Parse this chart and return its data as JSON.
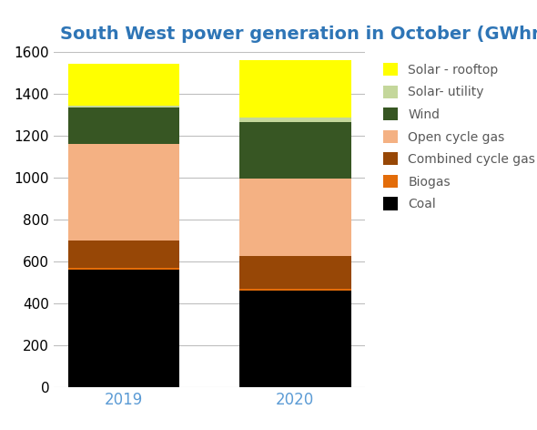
{
  "title": "South West power generation in October (GWhr)",
  "title_color": "#2E75B6",
  "categories": [
    "2019",
    "2020"
  ],
  "series": [
    {
      "label": "Coal",
      "values": [
        560,
        460
      ],
      "color": "#000000"
    },
    {
      "label": "Biogas",
      "values": [
        10,
        10
      ],
      "color": "#E36C09"
    },
    {
      "label": "Combined cycle gas",
      "values": [
        130,
        155
      ],
      "color": "#974706"
    },
    {
      "label": "Open cycle gas",
      "values": [
        460,
        370
      ],
      "color": "#F4B183"
    },
    {
      "label": "Wind",
      "values": [
        175,
        270
      ],
      "color": "#375623"
    },
    {
      "label": "Solar- utility",
      "values": [
        5,
        20
      ],
      "color": "#C4D79B"
    },
    {
      "label": "Solar - rooftop",
      "values": [
        200,
        275
      ],
      "color": "#FFFF00"
    }
  ],
  "ylim": [
    0,
    1600
  ],
  "yticks": [
    0,
    200,
    400,
    600,
    800,
    1000,
    1200,
    1400,
    1600
  ],
  "bar_width": 0.65,
  "grid_color": "#BFBFBF",
  "background_color": "#FFFFFF",
  "xtick_color": "#5B9BD5",
  "xtick_fontsize": 12,
  "ytick_fontsize": 11,
  "title_fontsize": 14,
  "legend_fontsize": 10,
  "legend_text_color": "#595959"
}
